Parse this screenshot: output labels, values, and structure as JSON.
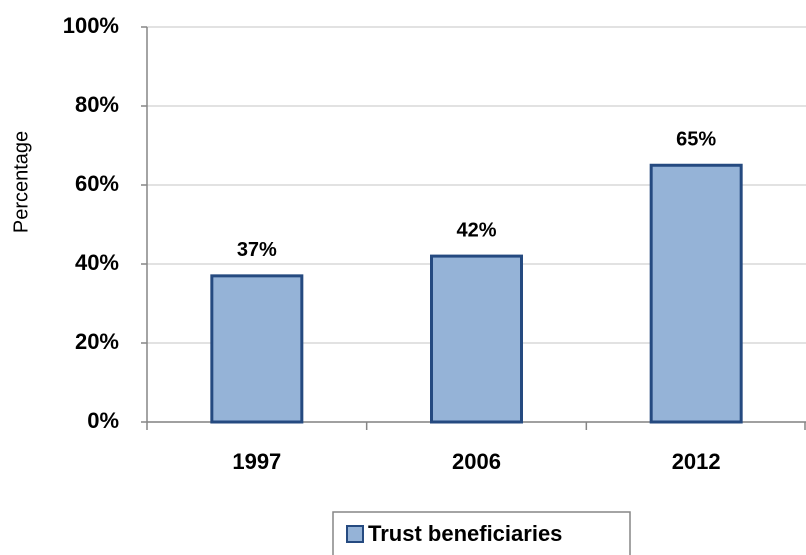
{
  "chart_data": {
    "type": "bar",
    "y_label": "Percentage",
    "categories": [
      "1997",
      "2006",
      "2012"
    ],
    "series": [
      {
        "name": "Trust beneficiaries",
        "color": "#95b3d7",
        "values": [
          37,
          42,
          65
        ],
        "value_labels": [
          "37%",
          "42%",
          "65%"
        ]
      }
    ],
    "ylim": [
      0,
      100
    ],
    "yticks": [
      {
        "value": 0,
        "label": "0%"
      },
      {
        "value": 20,
        "label": "20%"
      },
      {
        "value": 40,
        "label": "40%"
      },
      {
        "value": 60,
        "label": "60%"
      },
      {
        "value": 80,
        "label": "80%"
      },
      {
        "value": 100,
        "label": "100%"
      }
    ],
    "grid": true,
    "legend": "bottom"
  }
}
